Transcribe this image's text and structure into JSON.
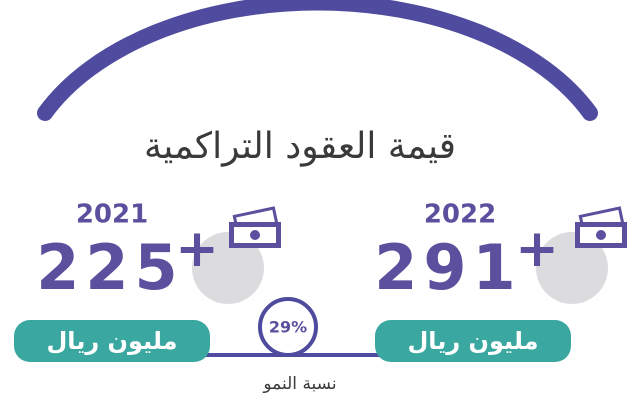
{
  "title": "قيمة العقود التراكمية",
  "items": [
    {
      "year": "2022",
      "value": "291",
      "plus": "+",
      "unit": "مليون ريال"
    },
    {
      "year": "2021",
      "value": "225",
      "plus": "+",
      "unit": "مليون ريال"
    }
  ],
  "growth": {
    "value": "29%",
    "label": "نسبة النمو"
  }
}
